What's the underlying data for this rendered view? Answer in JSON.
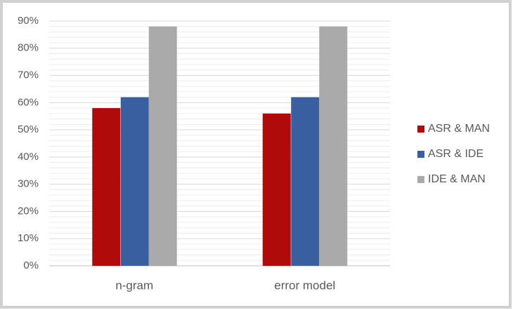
{
  "chart_data": {
    "type": "bar",
    "categories": [
      "n-gram",
      "error model"
    ],
    "series": [
      {
        "name": "ASR & MAN",
        "color": "#b00a0a",
        "values": [
          58,
          56
        ]
      },
      {
        "name": "ASR & IDE",
        "color": "#3a5fa0",
        "values": [
          62,
          62
        ]
      },
      {
        "name": "IDE & MAN",
        "color": "#aaaaaa",
        "values": [
          88,
          88
        ]
      }
    ],
    "ylim": [
      0,
      90
    ],
    "yticks": [
      {
        "value": 0,
        "label": "0%"
      },
      {
        "value": 10,
        "label": "10%"
      },
      {
        "value": 20,
        "label": "20%"
      },
      {
        "value": 30,
        "label": "30%"
      },
      {
        "value": 40,
        "label": "40%"
      },
      {
        "value": 50,
        "label": "50%"
      },
      {
        "value": 60,
        "label": "60%"
      },
      {
        "value": 70,
        "label": "70%"
      },
      {
        "value": 80,
        "label": "80%"
      },
      {
        "value": 90,
        "label": "90%"
      }
    ],
    "grid": true,
    "minor_grid": true,
    "legend": "right"
  }
}
